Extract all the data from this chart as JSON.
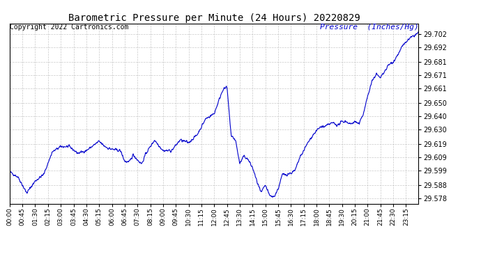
{
  "title": "Barometric Pressure per Minute (24 Hours) 20220829",
  "ylabel": "Pressure  (Inches/Hg)",
  "copyright_text": "Copyright 2022 Cartronics.com",
  "line_color": "#0000cc",
  "background_color": "#ffffff",
  "grid_color": "#bbbbbb",
  "title_color": "#000000",
  "ylabel_color": "#0000cc",
  "copyright_color": "#000000",
  "ytick_labels": [
    "29.578",
    "29.588",
    "29.599",
    "29.609",
    "29.619",
    "29.630",
    "29.640",
    "29.650",
    "29.661",
    "29.671",
    "29.681",
    "29.692",
    "29.702"
  ],
  "ytick_values": [
    29.578,
    29.588,
    29.599,
    29.609,
    29.619,
    29.63,
    29.64,
    29.65,
    29.661,
    29.671,
    29.681,
    29.692,
    29.702
  ],
  "xtick_labels": [
    "00:00",
    "00:45",
    "01:30",
    "02:15",
    "03:00",
    "03:45",
    "04:30",
    "05:15",
    "06:00",
    "06:45",
    "07:30",
    "08:15",
    "09:00",
    "09:45",
    "10:30",
    "11:15",
    "12:00",
    "12:45",
    "13:30",
    "14:15",
    "15:00",
    "15:45",
    "16:30",
    "17:15",
    "18:00",
    "18:45",
    "19:30",
    "20:15",
    "21:00",
    "21:45",
    "22:30",
    "23:15"
  ],
  "ylim_min": 29.574,
  "ylim_max": 29.71,
  "xlim_min": 0,
  "xlim_max": 1439,
  "control_points": [
    [
      0,
      29.598
    ],
    [
      30,
      29.594
    ],
    [
      60,
      29.582
    ],
    [
      90,
      29.591
    ],
    [
      120,
      29.596
    ],
    [
      150,
      29.613
    ],
    [
      180,
      29.617
    ],
    [
      210,
      29.617
    ],
    [
      240,
      29.612
    ],
    [
      270,
      29.614
    ],
    [
      315,
      29.621
    ],
    [
      330,
      29.618
    ],
    [
      345,
      29.616
    ],
    [
      360,
      29.615
    ],
    [
      390,
      29.614
    ],
    [
      405,
      29.606
    ],
    [
      420,
      29.605
    ],
    [
      435,
      29.611
    ],
    [
      450,
      29.607
    ],
    [
      465,
      29.604
    ],
    [
      480,
      29.612
    ],
    [
      495,
      29.617
    ],
    [
      510,
      29.622
    ],
    [
      540,
      29.614
    ],
    [
      570,
      29.614
    ],
    [
      600,
      29.622
    ],
    [
      630,
      29.62
    ],
    [
      660,
      29.626
    ],
    [
      690,
      29.638
    ],
    [
      720,
      29.642
    ],
    [
      750,
      29.66
    ],
    [
      765,
      29.662
    ],
    [
      780,
      29.625
    ],
    [
      795,
      29.622
    ],
    [
      810,
      29.604
    ],
    [
      825,
      29.61
    ],
    [
      840,
      29.607
    ],
    [
      855,
      29.601
    ],
    [
      870,
      29.591
    ],
    [
      885,
      29.582
    ],
    [
      900,
      29.588
    ],
    [
      915,
      29.58
    ],
    [
      930,
      29.579
    ],
    [
      945,
      29.585
    ],
    [
      960,
      29.596
    ],
    [
      975,
      29.596
    ],
    [
      990,
      29.597
    ],
    [
      1005,
      29.599
    ],
    [
      1020,
      29.608
    ],
    [
      1035,
      29.614
    ],
    [
      1050,
      29.62
    ],
    [
      1065,
      29.625
    ],
    [
      1080,
      29.629
    ],
    [
      1095,
      29.632
    ],
    [
      1110,
      29.632
    ],
    [
      1125,
      29.634
    ],
    [
      1140,
      29.635
    ],
    [
      1155,
      29.633
    ],
    [
      1170,
      29.636
    ],
    [
      1185,
      29.636
    ],
    [
      1200,
      29.634
    ],
    [
      1215,
      29.636
    ],
    [
      1230,
      29.634
    ],
    [
      1245,
      29.642
    ],
    [
      1260,
      29.655
    ],
    [
      1275,
      29.666
    ],
    [
      1290,
      29.672
    ],
    [
      1305,
      29.669
    ],
    [
      1320,
      29.674
    ],
    [
      1335,
      29.679
    ],
    [
      1350,
      29.681
    ],
    [
      1365,
      29.686
    ],
    [
      1380,
      29.692
    ],
    [
      1395,
      29.696
    ],
    [
      1410,
      29.699
    ],
    [
      1425,
      29.701
    ],
    [
      1439,
      29.703
    ]
  ]
}
